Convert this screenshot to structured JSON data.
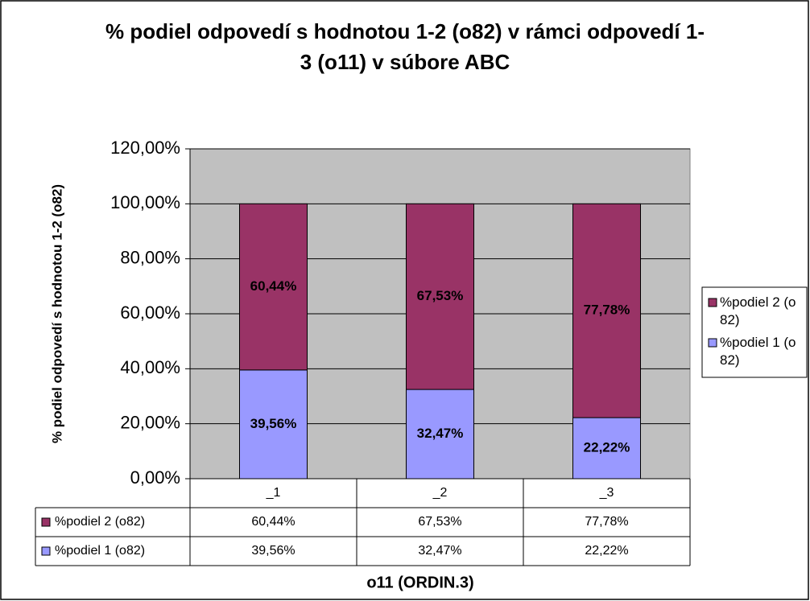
{
  "chart_data": {
    "type": "stacked_bar",
    "title": "% podiel odpovedí s hodnotou 1-2 (o82) v rámci odpovedí 1-3 (o11) v súbore ABC",
    "x_label": "o11 (ORDIN.3)",
    "y_label": "% podiel odpovedí s hodnotou 1-2 (o82)",
    "categories": [
      "_1",
      "_2",
      "_3"
    ],
    "series": [
      {
        "name": "%podiel 1 (o82)",
        "color": "#9999ff",
        "values": [
          39.56,
          32.47,
          22.22
        ],
        "value_labels": [
          "39,56%",
          "32,47%",
          "22,22%"
        ]
      },
      {
        "name": "%podiel 2 (o82)",
        "color": "#993366",
        "values": [
          60.44,
          67.53,
          77.78
        ],
        "value_labels": [
          "60,44%",
          "67,53%",
          "77,78%"
        ]
      }
    ],
    "ylim": [
      0,
      120
    ],
    "yticks": [
      {
        "value": 0,
        "label": "0,00%"
      },
      {
        "value": 20,
        "label": "20,00%"
      },
      {
        "value": 40,
        "label": "40,00%"
      },
      {
        "value": 60,
        "label": "60,00%"
      },
      {
        "value": 80,
        "label": "80,00%"
      },
      {
        "value": 100,
        "label": "100,00%"
      },
      {
        "value": 120,
        "label": "120,00%"
      }
    ],
    "grid": true,
    "legend": "right",
    "plot_background": "#c0c0c0"
  }
}
